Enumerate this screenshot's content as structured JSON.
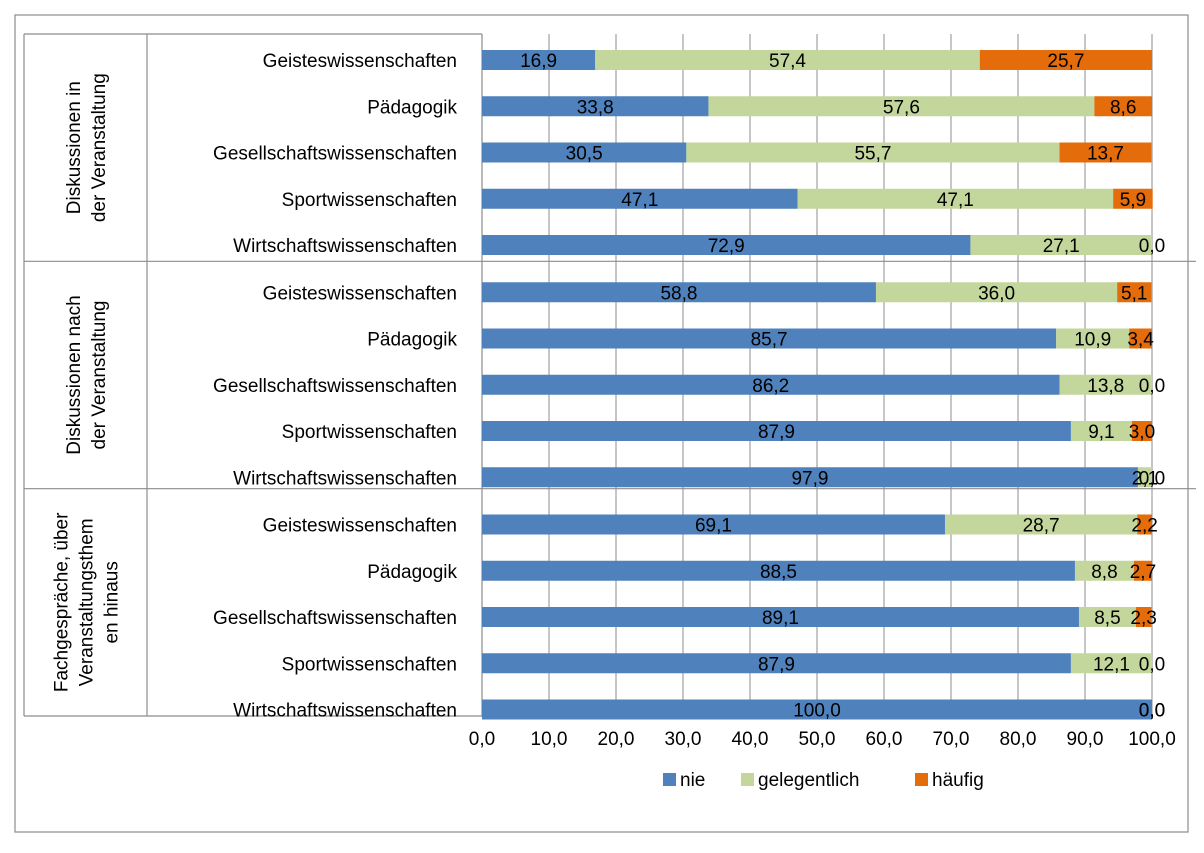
{
  "chart_data": {
    "type": "bar",
    "orientation": "horizontal",
    "stacked": true,
    "groups": [
      {
        "label_lines": [
          "Diskussionen in",
          "der Veranstaltung"
        ],
        "categories": [
          "Geisteswissenschaften",
          "Pädagogik",
          "Gesellschaftswissenschaften",
          "Sportwissenschaften",
          "Wirtschaftswissenschaften"
        ],
        "series": [
          {
            "name": "nie",
            "values": [
              16.9,
              33.8,
              30.5,
              47.1,
              72.9
            ],
            "labels": [
              "16,9",
              "33,8",
              "30,5",
              "47,1",
              "72,9"
            ]
          },
          {
            "name": "gelegentlich",
            "values": [
              57.4,
              57.6,
              55.7,
              47.1,
              27.1
            ],
            "labels": [
              "57,4",
              "57,6",
              "55,7",
              "47,1",
              "27,1"
            ]
          },
          {
            "name": "häufig",
            "values": [
              25.7,
              8.6,
              13.7,
              5.9,
              0.0
            ],
            "labels": [
              "25,7",
              "8,6",
              "13,7",
              "5,9",
              "0,0"
            ]
          }
        ]
      },
      {
        "label_lines": [
          "Diskussionen nach",
          "der Veranstaltung"
        ],
        "categories": [
          "Geisteswissenschaften",
          "Pädagogik",
          "Gesellschaftswissenschaften",
          "Sportwissenschaften",
          "Wirtschaftswissenschaften"
        ],
        "series": [
          {
            "name": "nie",
            "values": [
              58.8,
              85.7,
              86.2,
              87.9,
              97.9
            ],
            "labels": [
              "58,8",
              "85,7",
              "86,2",
              "87,9",
              "97,9"
            ]
          },
          {
            "name": "gelegentlich",
            "values": [
              36.0,
              10.9,
              13.8,
              9.1,
              2.1
            ],
            "labels": [
              "36,0",
              "10,9",
              "13,8",
              "9,1",
              "2,1"
            ]
          },
          {
            "name": "häufig",
            "values": [
              5.1,
              3.4,
              0.0,
              3.0,
              0.0
            ],
            "labels": [
              "5,1",
              "3,4",
              "0,0",
              "3,0",
              "0,0"
            ]
          }
        ]
      },
      {
        "label_lines": [
          "Fachgespräche, über",
          "Veranstaltungsthem",
          "en hinaus"
        ],
        "categories": [
          "Geisteswissenschaften",
          "Pädagogik",
          "Gesellschaftswissenschaften",
          "Sportwissenschaften",
          "Wirtschaftswissenschaften"
        ],
        "series": [
          {
            "name": "nie",
            "values": [
              69.1,
              88.5,
              89.1,
              87.9,
              100.0
            ],
            "labels": [
              "69,1",
              "88,5",
              "89,1",
              "87,9",
              "100,0"
            ]
          },
          {
            "name": "gelegentlich",
            "values": [
              28.7,
              8.8,
              8.5,
              12.1,
              0.0
            ],
            "labels": [
              "28,7",
              "8,8",
              "8,5",
              "12,1",
              "0,0"
            ]
          },
          {
            "name": "häufig",
            "values": [
              2.2,
              2.7,
              2.3,
              0.0,
              0.0
            ],
            "labels": [
              "2,2",
              "2,7",
              "2,3",
              "0,0",
              "0,0"
            ]
          }
        ]
      }
    ],
    "xlim": [
      0,
      100
    ],
    "xticks": [
      "0,0",
      "10,0",
      "20,0",
      "30,0",
      "40,0",
      "50,0",
      "60,0",
      "70,0",
      "80,0",
      "90,0",
      "100,0"
    ],
    "grid": true,
    "legend": {
      "position": "bottom",
      "entries": [
        "nie",
        "gelegentlich",
        "häufig"
      ]
    },
    "colors": {
      "nie": "#4f81bd",
      "gelegentlich": "#c3d69b",
      "häufig": "#e46c0a",
      "grid": "#8c8c8c",
      "text": "#000000"
    }
  }
}
